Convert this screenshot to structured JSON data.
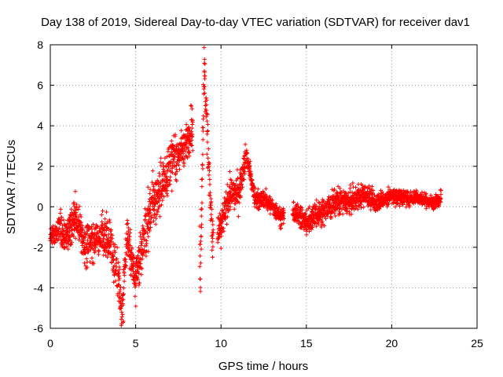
{
  "chart_data": {
    "type": "scatter",
    "title": "Day 138 of 2019, Sidereal Day-to-day VTEC variation (SDTVAR) for receiver dav1",
    "xlabel": "GPS time / hours",
    "ylabel": "SDTVAR / TECUs",
    "xlim": [
      0,
      25
    ],
    "ylim": [
      -6,
      8
    ],
    "x_ticks": [
      0,
      5,
      10,
      15,
      20,
      25
    ],
    "y_ticks": [
      -6,
      -4,
      -2,
      0,
      2,
      4,
      6,
      8
    ],
    "grid": true,
    "marker": "+",
    "color": "#ff0000",
    "trend_samples": [
      {
        "x": 0.0,
        "y": -1.4
      },
      {
        "x": 0.5,
        "y": -1.1
      },
      {
        "x": 1.0,
        "y": -1.5
      },
      {
        "x": 1.5,
        "y": -0.3
      },
      {
        "x": 2.0,
        "y": -2.0
      },
      {
        "x": 2.5,
        "y": -1.6
      },
      {
        "x": 3.0,
        "y": -1.5
      },
      {
        "x": 3.5,
        "y": -1.7
      },
      {
        "x": 4.0,
        "y": -3.5
      },
      {
        "x": 4.2,
        "y": -5.3
      },
      {
        "x": 4.5,
        "y": -1.2
      },
      {
        "x": 5.0,
        "y": -3.8
      },
      {
        "x": 5.5,
        "y": -1.5
      },
      {
        "x": 6.0,
        "y": 0.2
      },
      {
        "x": 6.5,
        "y": 0.8
      },
      {
        "x": 7.0,
        "y": 2.2
      },
      {
        "x": 7.5,
        "y": 2.6
      },
      {
        "x": 8.0,
        "y": 3.2
      },
      {
        "x": 8.3,
        "y": 4.0
      },
      {
        "x": 8.8,
        "y": -3.0
      },
      {
        "x": 9.0,
        "y": 6.8
      },
      {
        "x": 9.3,
        "y": 2.0
      },
      {
        "x": 9.5,
        "y": -1.8
      },
      {
        "x": 10.0,
        "y": -1.0
      },
      {
        "x": 10.5,
        "y": 0.6
      },
      {
        "x": 11.0,
        "y": 0.7
      },
      {
        "x": 11.5,
        "y": 2.6
      },
      {
        "x": 12.0,
        "y": 0.3
      },
      {
        "x": 12.5,
        "y": 0.4
      },
      {
        "x": 13.0,
        "y": 0.0
      },
      {
        "x": 13.5,
        "y": -0.5
      },
      {
        "x": 14.5,
        "y": -0.3
      },
      {
        "x": 15.0,
        "y": -0.8
      },
      {
        "x": 15.5,
        "y": -0.4
      },
      {
        "x": 16.0,
        "y": -0.3
      },
      {
        "x": 16.5,
        "y": 0.1
      },
      {
        "x": 17.0,
        "y": 0.3
      },
      {
        "x": 17.5,
        "y": 0.2
      },
      {
        "x": 18.0,
        "y": 0.5
      },
      {
        "x": 18.5,
        "y": 0.6
      },
      {
        "x": 19.0,
        "y": 0.2
      },
      {
        "x": 19.5,
        "y": 0.4
      },
      {
        "x": 20.0,
        "y": 0.5
      },
      {
        "x": 20.5,
        "y": 0.5
      },
      {
        "x": 21.0,
        "y": 0.4
      },
      {
        "x": 21.5,
        "y": 0.5
      },
      {
        "x": 22.0,
        "y": 0.3
      },
      {
        "x": 22.5,
        "y": 0.2
      },
      {
        "x": 22.9,
        "y": 0.5
      }
    ],
    "spread_samples": [
      {
        "x": 0.0,
        "s": 0.4
      },
      {
        "x": 1.0,
        "s": 0.9
      },
      {
        "x": 2.0,
        "s": 1.0
      },
      {
        "x": 3.0,
        "s": 1.0
      },
      {
        "x": 4.0,
        "s": 1.2
      },
      {
        "x": 5.0,
        "s": 1.2
      },
      {
        "x": 6.0,
        "s": 1.3
      },
      {
        "x": 7.0,
        "s": 1.2
      },
      {
        "x": 8.0,
        "s": 0.8
      },
      {
        "x": 9.0,
        "s": 1.6
      },
      {
        "x": 10.0,
        "s": 0.8
      },
      {
        "x": 11.0,
        "s": 0.8
      },
      {
        "x": 12.0,
        "s": 0.5
      },
      {
        "x": 13.0,
        "s": 0.4
      },
      {
        "x": 15.0,
        "s": 0.6
      },
      {
        "x": 17.0,
        "s": 0.6
      },
      {
        "x": 19.0,
        "s": 0.5
      },
      {
        "x": 21.0,
        "s": 0.35
      },
      {
        "x": 23.0,
        "s": 0.3
      }
    ],
    "gaps": [
      [
        8.35,
        8.75
      ],
      [
        9.55,
        9.8
      ],
      [
        13.7,
        14.2
      ]
    ],
    "sampling_interval_hours": 0.011,
    "random_seed": 138
  }
}
